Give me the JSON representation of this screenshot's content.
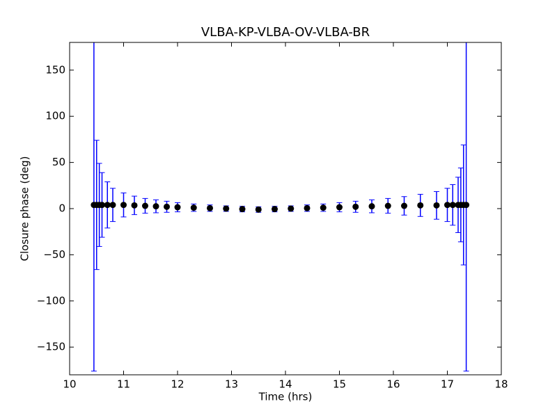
{
  "chart_data": {
    "type": "errorbar",
    "title": "VLBA-KP-VLBA-OV-VLBA-BR",
    "xlabel": "Time (hrs)",
    "ylabel": "Closure phase (deg)",
    "x": [
      10.45,
      10.5,
      10.55,
      10.6,
      10.7,
      10.8,
      11.0,
      11.2,
      11.4,
      11.6,
      11.8,
      12.0,
      12.3,
      12.6,
      12.9,
      13.2,
      13.5,
      13.8,
      14.1,
      14.4,
      14.7,
      15.0,
      15.3,
      15.6,
      15.9,
      16.2,
      16.5,
      16.8,
      17.0,
      17.1,
      17.2,
      17.25,
      17.3,
      17.35
    ],
    "values": [
      4,
      4,
      4,
      4,
      4,
      4,
      4,
      3.5,
      3,
      2.5,
      2,
      1.5,
      1,
      0.5,
      0,
      -0.5,
      -1,
      -0.5,
      0,
      0.5,
      1,
      1.5,
      2,
      2.5,
      3,
      3,
      3.5,
      3.5,
      4,
      4,
      4,
      4,
      4,
      4
    ],
    "errors": [
      180,
      70,
      45,
      35,
      25,
      18,
      13,
      10,
      8,
      7,
      6,
      5,
      4,
      3.5,
      3,
      3,
      3,
      3,
      3,
      3.5,
      4,
      5,
      6,
      7,
      8,
      10,
      12,
      15,
      18,
      22,
      30,
      40,
      65,
      180
    ],
    "color": "#000000",
    "error_color": "#0000ff",
    "xlim": [
      10,
      18
    ],
    "xticks": [
      10,
      11,
      12,
      13,
      14,
      15,
      16,
      17,
      18
    ],
    "ylim": [
      -180,
      180
    ],
    "yticks": [
      {
        "value": -150,
        "label": "−150"
      },
      {
        "value": -100,
        "label": "−100"
      },
      {
        "value": -50,
        "label": "−50"
      },
      0,
      50,
      100,
      150
    ]
  }
}
